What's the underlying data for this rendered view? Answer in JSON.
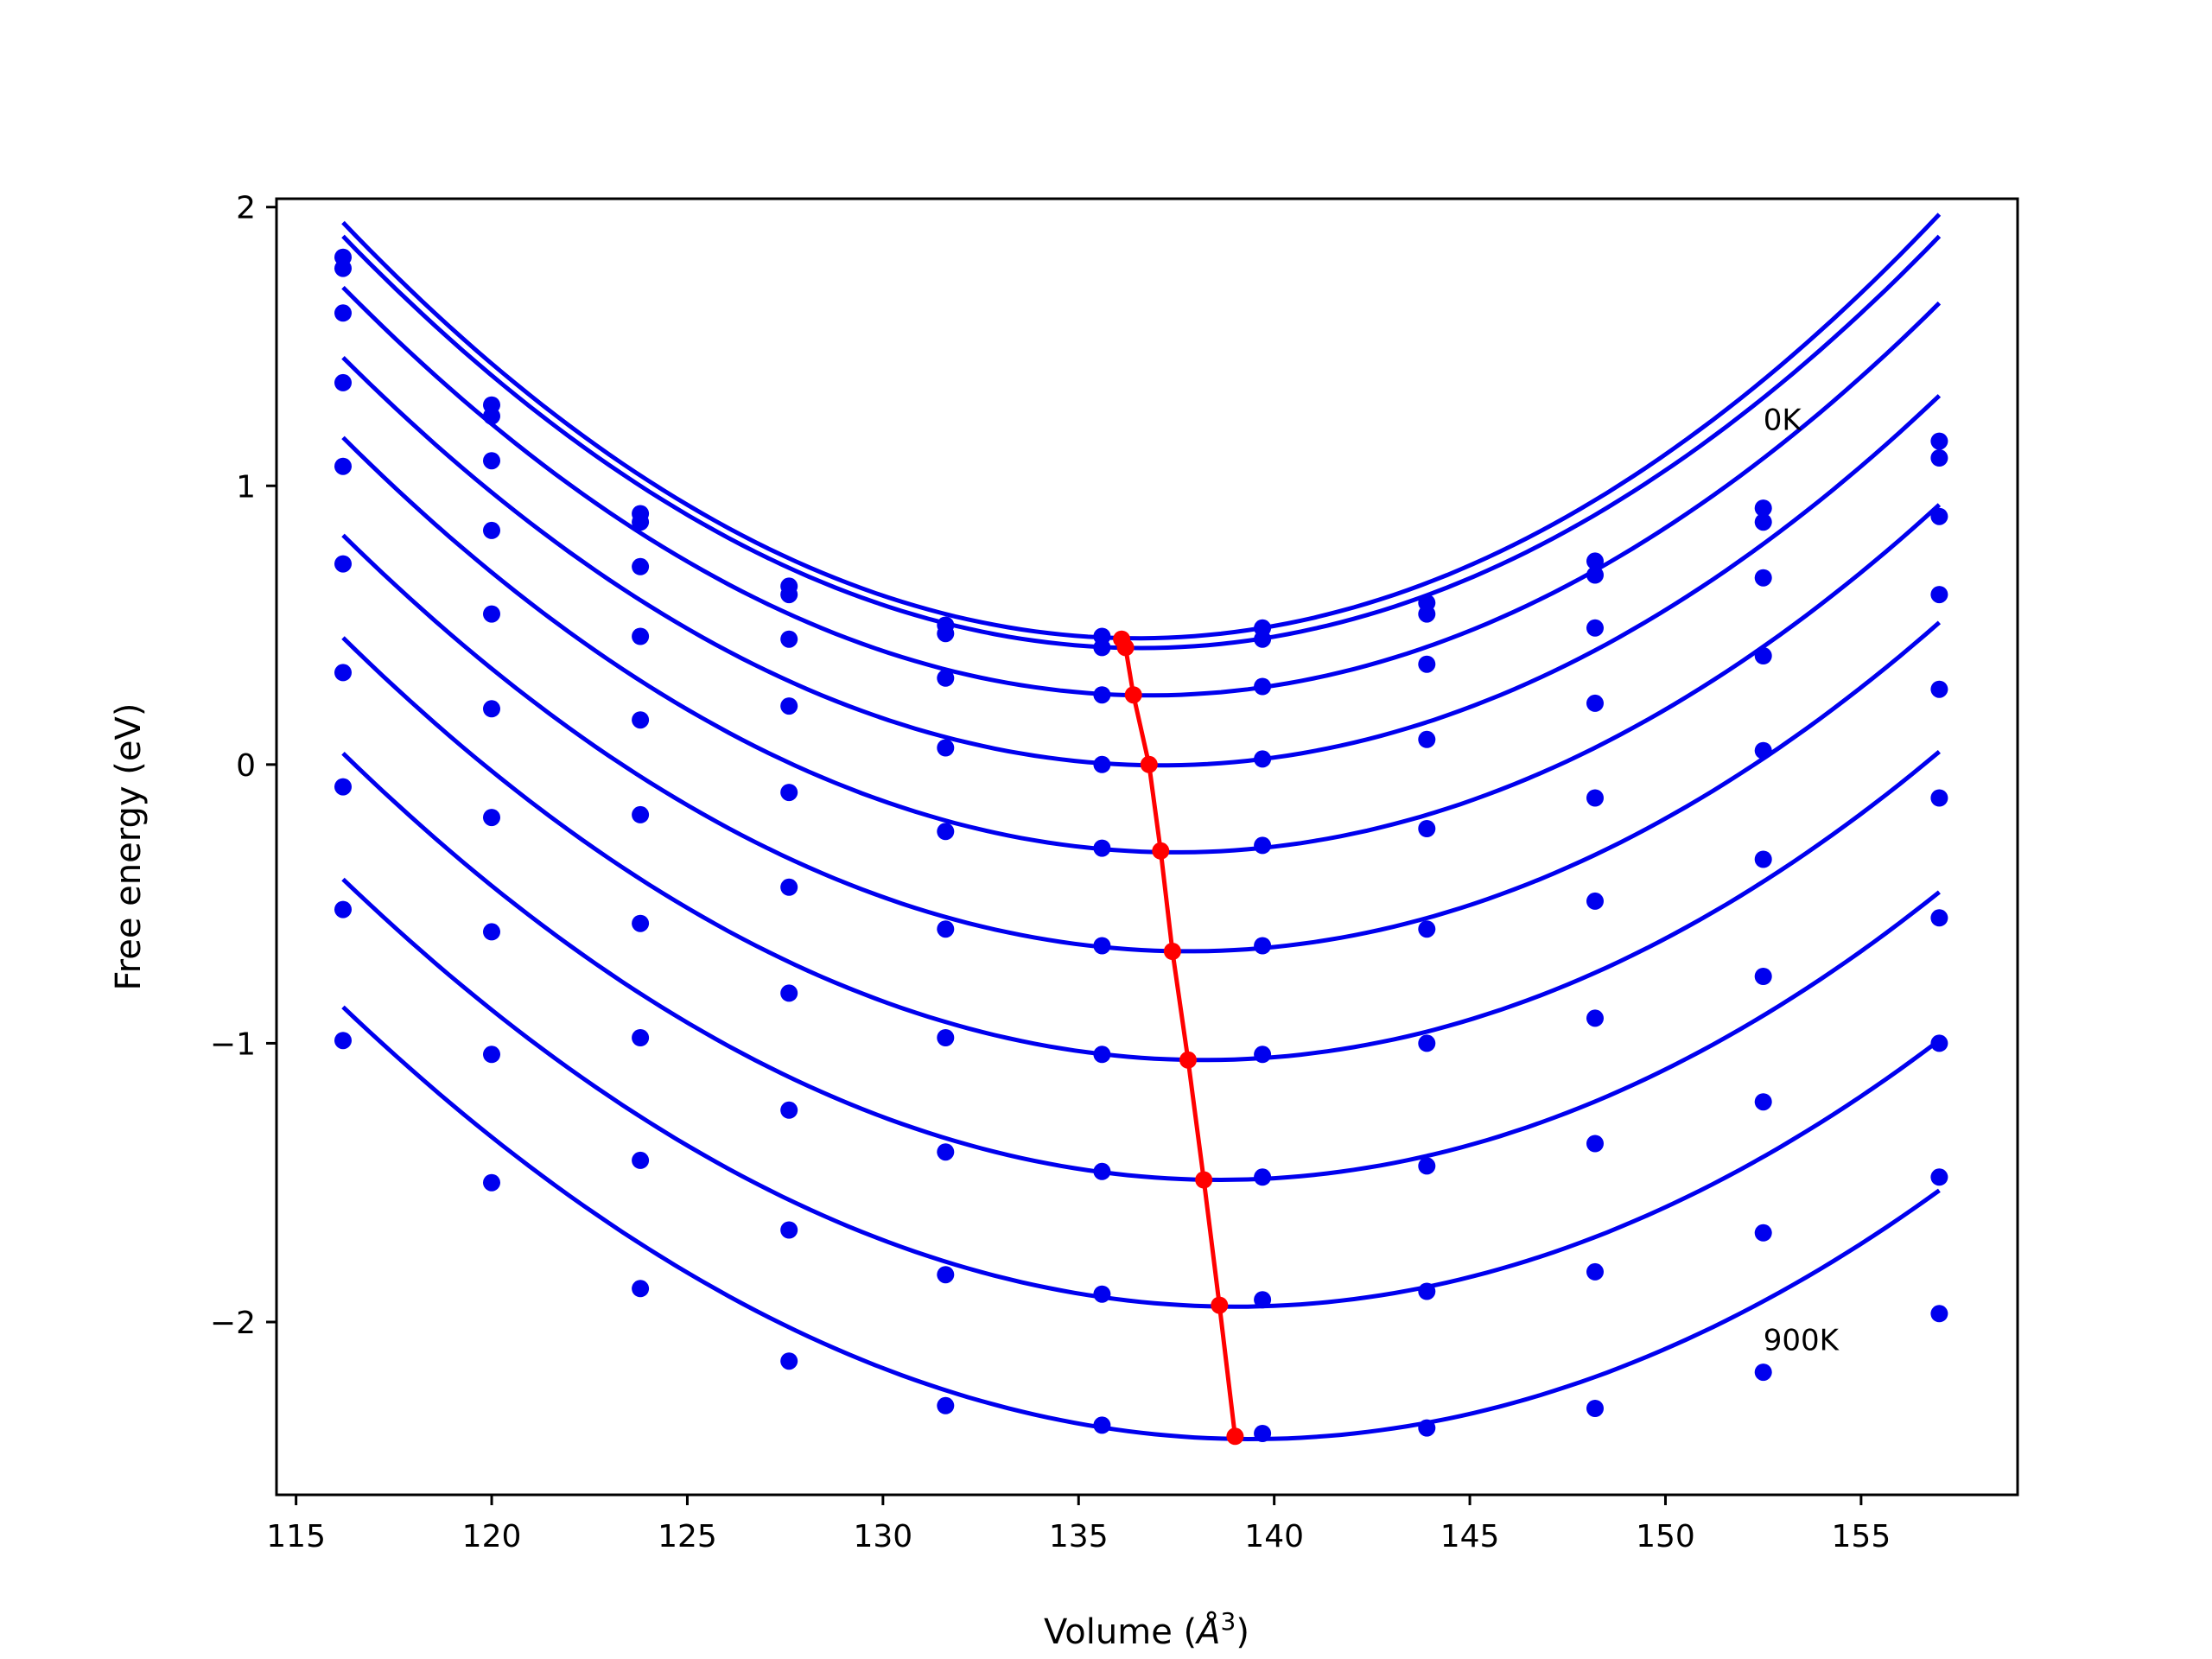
{
  "chart_data": {
    "type": "line",
    "xlabel": "Volume (",
    "xlabel_unit_letter": "Å",
    "xlabel_unit_power": "3",
    "xlabel_close": ")",
    "ylabel": "Free energy (eV)",
    "xlim": [
      114.5,
      159
    ],
    "ylim": [
      -2.62,
      2.03
    ],
    "xticks": [
      115,
      120,
      125,
      130,
      135,
      140,
      145,
      150,
      155
    ],
    "yticks": [
      2,
      1,
      0,
      -1,
      -2
    ],
    "ytick_labels": [
      "2",
      "1",
      "0",
      "−1",
      "−2"
    ],
    "grid": false,
    "legend": "none",
    "colors": {
      "curves": "#0000ee",
      "minima": "#ff0000"
    },
    "volumes": [
      116.2,
      120.0,
      123.8,
      127.6,
      131.6,
      135.6,
      139.7,
      143.9,
      148.2,
      152.5,
      157.0
    ],
    "annotations": [
      {
        "text": "0K",
        "x": 152.5,
        "y": 1.2
      },
      {
        "text": "900K",
        "x": 152.5,
        "y": -2.1
      }
    ],
    "series": [
      {
        "values": [
          1.82,
          1.29,
          0.9,
          0.64,
          0.5,
          0.46,
          0.49,
          0.58,
          0.73,
          0.92,
          1.16
        ],
        "fit": {
          "a": 0.00362,
          "v0": 136.5,
          "f0": 0.453
        }
      },
      {
        "values": [
          1.78,
          1.25,
          0.87,
          0.61,
          0.47,
          0.42,
          0.45,
          0.54,
          0.68,
          0.87,
          1.1
        ],
        "fit": {
          "a": 0.00355,
          "v0": 136.6,
          "f0": 0.418
        }
      },
      {
        "values": [
          1.62,
          1.09,
          0.71,
          0.45,
          0.31,
          0.25,
          0.28,
          0.36,
          0.49,
          0.67,
          0.89
        ],
        "fit": {
          "a": 0.00345,
          "v0": 136.8,
          "f0": 0.248
        }
      },
      {
        "values": [
          1.37,
          0.84,
          0.46,
          0.21,
          0.06,
          0.0,
          0.02,
          0.09,
          0.22,
          0.39,
          0.61
        ],
        "fit": {
          "a": 0.00335,
          "v0": 137.1,
          "f0": -0.003
        }
      },
      {
        "values": [
          1.07,
          0.54,
          0.16,
          -0.1,
          -0.24,
          -0.3,
          -0.29,
          -0.23,
          -0.12,
          0.05,
          0.27
        ],
        "fit": {
          "a": 0.00328,
          "v0": 137.5,
          "f0": -0.315
        }
      },
      {
        "values": [
          0.72,
          0.2,
          -0.18,
          -0.44,
          -0.59,
          -0.65,
          -0.65,
          -0.59,
          -0.49,
          -0.34,
          -0.12
        ],
        "fit": {
          "a": 0.0032,
          "v0": 137.8,
          "f0": -0.67
        }
      },
      {
        "values": [
          0.33,
          -0.19,
          -0.57,
          -0.82,
          -0.98,
          -1.04,
          -1.04,
          -1.0,
          -0.91,
          -0.76,
          -0.55
        ],
        "fit": {
          "a": 0.00313,
          "v0": 138.2,
          "f0": -1.06
        }
      },
      {
        "values": [
          -0.08,
          -0.6,
          -0.98,
          -1.24,
          -1.39,
          -1.46,
          -1.48,
          -1.44,
          -1.36,
          -1.21,
          -1.0
        ],
        "fit": {
          "a": 0.00305,
          "v0": 138.6,
          "f0": -1.49
        }
      },
      {
        "values": [
          -0.52,
          -1.04,
          -1.42,
          -1.67,
          -1.83,
          -1.9,
          -1.92,
          -1.89,
          -1.82,
          -1.68,
          -1.48
        ],
        "fit": {
          "a": 0.00295,
          "v0": 139.0,
          "f0": -1.945
        }
      },
      {
        "values": [
          -0.99,
          -1.5,
          -1.88,
          -2.14,
          -2.3,
          -2.37,
          -2.4,
          -2.38,
          -2.31,
          -2.18,
          -1.97
        ],
        "fit": {
          "a": 0.00288,
          "v0": 139.4,
          "f0": -2.42
        }
      }
    ],
    "minima": {
      "x": [
        136.1,
        136.2,
        136.4,
        136.8,
        137.1,
        137.4,
        137.8,
        138.2,
        138.6,
        139.0
      ],
      "y": [
        0.45,
        0.42,
        0.25,
        0.0,
        -0.31,
        -0.67,
        -1.06,
        -1.49,
        -1.94,
        -2.41
      ]
    }
  }
}
